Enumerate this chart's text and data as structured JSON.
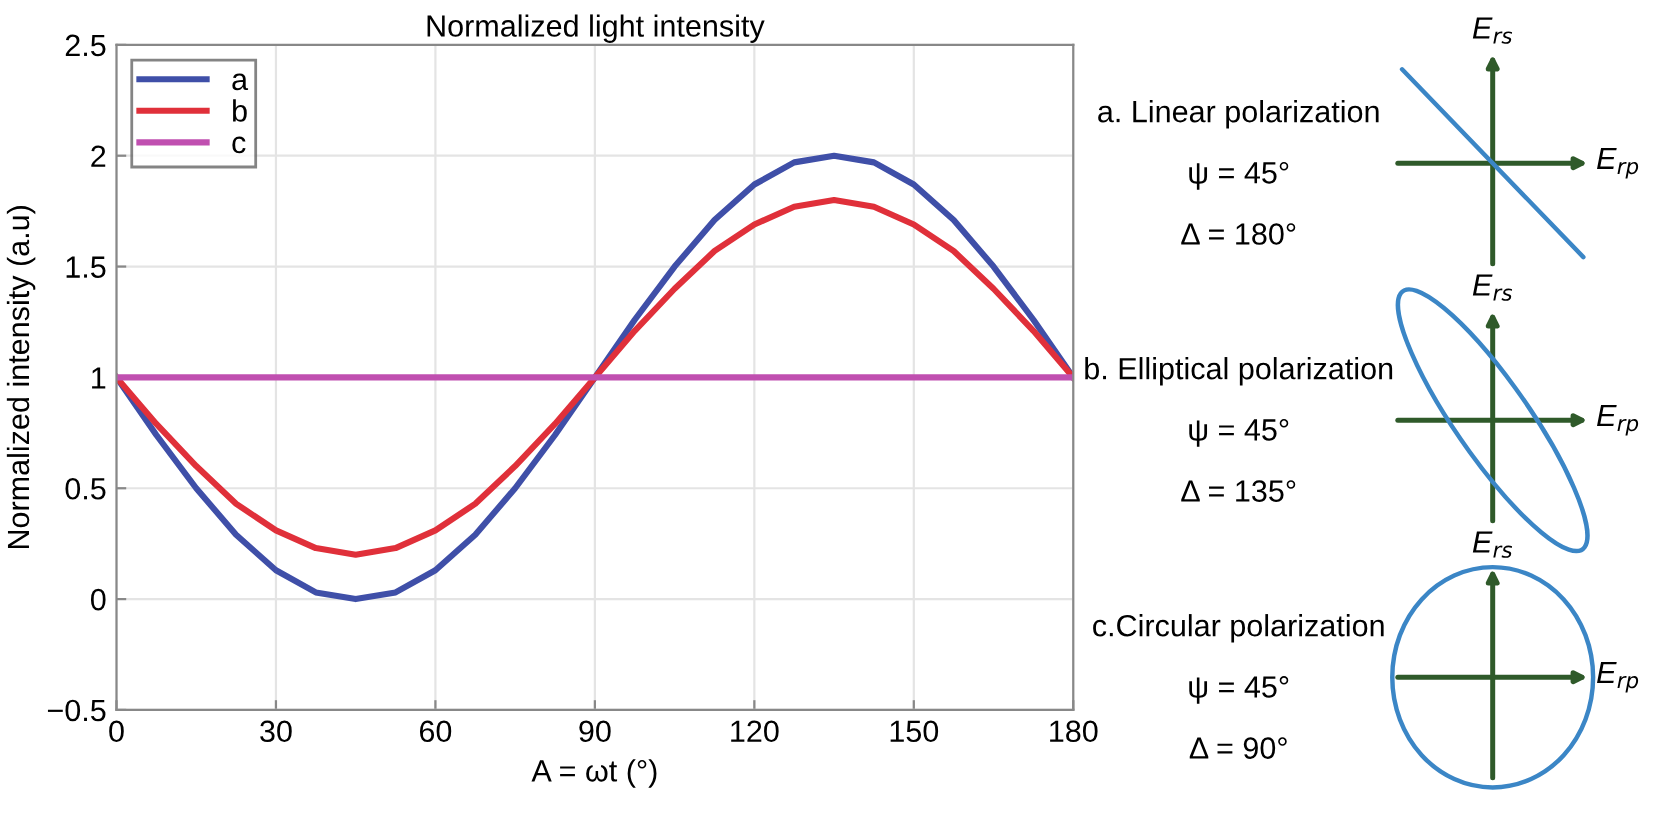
{
  "chart_data": [
    {
      "type": "line",
      "title": "Normalized light intensity",
      "xlabel": "A = ωt (°)",
      "ylabel": "Normalized intensity (a.u)",
      "x": [
        0,
        7.5,
        15,
        22.5,
        30,
        37.5,
        45,
        52.5,
        60,
        67.5,
        75,
        82.5,
        90,
        97.5,
        105,
        112.5,
        120,
        127.5,
        135,
        142.5,
        150,
        157.5,
        165,
        172.5,
        180
      ],
      "series": [
        {
          "name": "a",
          "color": "#3f4fa8",
          "values": [
            1,
            0.74,
            0.5,
            0.29,
            0.13,
            0.03,
            0,
            0.03,
            0.13,
            0.29,
            0.5,
            0.74,
            1,
            1.26,
            1.5,
            1.71,
            1.87,
            1.97,
            2,
            1.97,
            1.87,
            1.71,
            1.5,
            1.26,
            1
          ]
        },
        {
          "name": "b",
          "color": "#e0303a",
          "values": [
            1,
            0.79,
            0.6,
            0.43,
            0.31,
            0.23,
            0.2,
            0.23,
            0.31,
            0.43,
            0.6,
            0.79,
            1,
            1.21,
            1.4,
            1.57,
            1.69,
            1.77,
            1.8,
            1.77,
            1.69,
            1.57,
            1.4,
            1.21,
            1
          ]
        },
        {
          "name": "c",
          "color": "#c04fb0",
          "values": [
            1,
            1,
            1,
            1,
            1,
            1,
            1,
            1,
            1,
            1,
            1,
            1,
            1,
            1,
            1,
            1,
            1,
            1,
            1,
            1,
            1,
            1,
            1,
            1,
            1
          ]
        }
      ],
      "xlim": [
        0,
        180
      ],
      "xticks": [
        0,
        30,
        60,
        90,
        120,
        150,
        180
      ],
      "ylim": [
        -0.5,
        2.5
      ],
      "yticks": [
        {
          "value": -0.5,
          "label": "−0.5"
        },
        0,
        0.5,
        1,
        1.5,
        2,
        2.5
      ],
      "grid": true,
      "legend": "top left"
    },
    {
      "type": "other",
      "annotations": [
        "a. Linear polarization",
        "ψ = 45°",
        "Δ = 180°",
        "E$_{rs}$",
        "E$_{rp}$",
        "b. Elliptical polarization",
        "ψ = 45°",
        "Δ = 135°",
        "E$_{rs}$",
        "E$_{rp}$",
        "c.Circular polarization",
        "ψ = 45°",
        "Δ = 90°",
        "E$_{rs}$",
        "E$_{rp}$"
      ]
    }
  ]
}
